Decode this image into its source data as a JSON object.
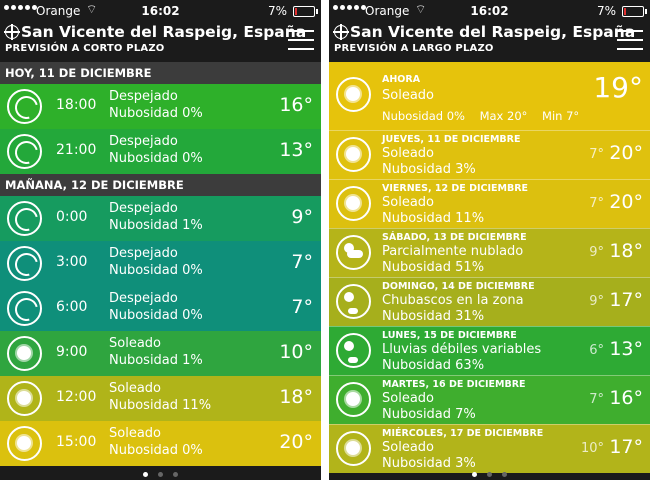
{
  "status": {
    "carrier": "Orange",
    "time": "16:02",
    "battery": "7%"
  },
  "left": {
    "city": "San Vicente del Raspeig, España",
    "subtitle": "PREVISIÓN A CORTO PLAZO",
    "sections": [
      {
        "title": "HOY, 11 DE DICIEMBRE",
        "rows": [
          {
            "time": "18:00",
            "desc": "Despejado",
            "cloud": "Nubosidad 0%",
            "temp": "16°",
            "icon": "moon-icon",
            "color": "#2eb02a"
          },
          {
            "time": "21:00",
            "desc": "Despejado",
            "cloud": "Nubosidad 0%",
            "temp": "13°",
            "icon": "moon-icon",
            "color": "#23a83a"
          }
        ]
      },
      {
        "title": "MAÑANA, 12 DE DICIEMBRE",
        "rows": [
          {
            "time": "0:00",
            "desc": "Despejado",
            "cloud": "Nubosidad 1%",
            "temp": "9°",
            "icon": "moon-icon",
            "color": "#169b5f"
          },
          {
            "time": "3:00",
            "desc": "Despejado",
            "cloud": "Nubosidad 0%",
            "temp": "7°",
            "icon": "moon-icon",
            "color": "#0f8f7a"
          },
          {
            "time": "6:00",
            "desc": "Despejado",
            "cloud": "Nubosidad 0%",
            "temp": "7°",
            "icon": "moon-icon",
            "color": "#0f8f7a"
          },
          {
            "time": "9:00",
            "desc": "Soleado",
            "cloud": "Nubosidad 1%",
            "temp": "10°",
            "icon": "sun-icon",
            "color": "#2fa53f"
          },
          {
            "time": "12:00",
            "desc": "Soleado",
            "cloud": "Nubosidad 11%",
            "temp": "18°",
            "icon": "sun-icon",
            "color": "#b0b419"
          },
          {
            "time": "15:00",
            "desc": "Soleado",
            "cloud": "Nubosidad 0%",
            "temp": "20°",
            "icon": "sun-icon",
            "color": "#dbc10e"
          }
        ]
      }
    ]
  },
  "right": {
    "city": "San Vicente del Raspeig, España",
    "subtitle": "PREVISIÓN A LARGO PLAZO",
    "now": {
      "label": "AHORA",
      "desc": "Soleado",
      "details": "Nubosidad 0%    Max 20°    Min 7°",
      "temp": "19°",
      "icon": "sun-icon",
      "color": "#e6c30c"
    },
    "days": [
      {
        "head": "JUEVES, 11 DE DICIEMBRE",
        "desc": "Soleado",
        "cloud": "Nubosidad 3%",
        "min": "7°",
        "max": "20°",
        "icon": "sun-icon",
        "color": "#dfc10e"
      },
      {
        "head": "VIERNES, 12 DE DICIEMBRE",
        "desc": "Soleado",
        "cloud": "Nubosidad 11%",
        "min": "7°",
        "max": "20°",
        "icon": "sun-icon",
        "color": "#dcc00f"
      },
      {
        "head": "SÁBADO, 13 DE DICIEMBRE",
        "desc": "Parcialmente nublado",
        "cloud": "Nubosidad 51%",
        "min": "9°",
        "max": "18°",
        "icon": "partly-cloudy-icon",
        "color": "#b5b419"
      },
      {
        "head": "DOMINGO, 14 DE DICIEMBRE",
        "desc": "Chubascos en la zona",
        "cloud": "Nubosidad 31%",
        "min": "9°",
        "max": "17°",
        "icon": "showers-icon",
        "color": "#a6af1c"
      },
      {
        "head": "LUNES, 15 DE DICIEMBRE",
        "desc": "Lluvias débiles variables",
        "cloud": "Nubosidad 63%",
        "min": "6°",
        "max": "13°",
        "icon": "rain-icon",
        "color": "#2eaa34"
      },
      {
        "head": "MARTES, 16 DE DICIEMBRE",
        "desc": "Soleado",
        "cloud": "Nubosidad 7%",
        "min": "7°",
        "max": "16°",
        "icon": "sun-icon",
        "color": "#3fae2e"
      },
      {
        "head": "MIÉRCOLES, 17 DE DICIEMBRE",
        "desc": "Soleado",
        "cloud": "Nubosidad 3%",
        "min": "10°",
        "max": "17°",
        "icon": "sun-icon",
        "color": "#b2b41a"
      }
    ]
  }
}
